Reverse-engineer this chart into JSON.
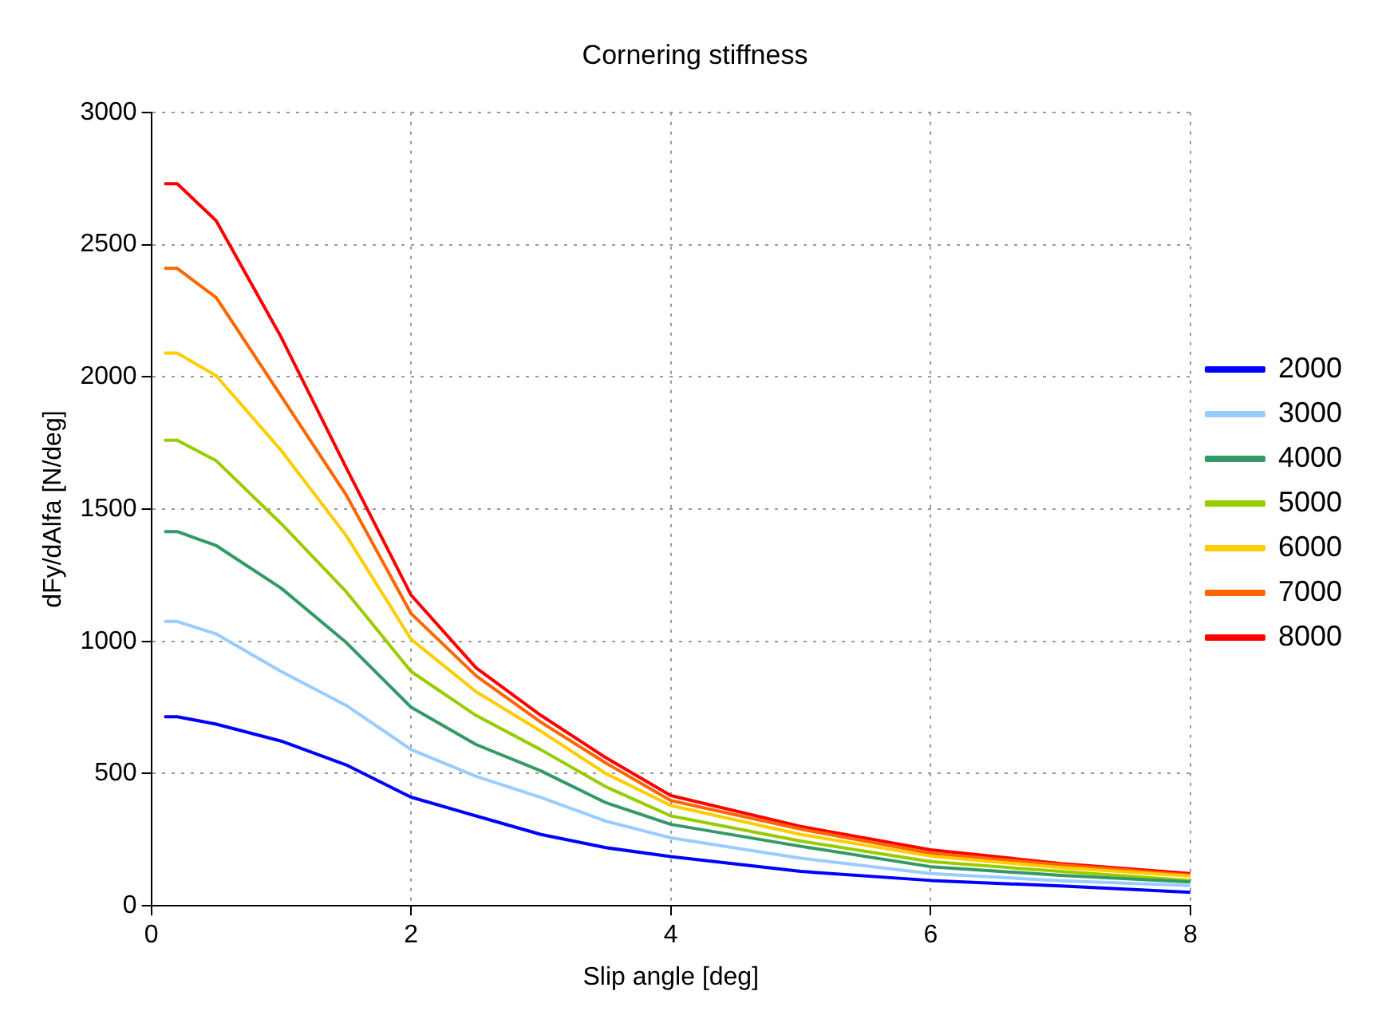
{
  "chart_data": {
    "type": "line",
    "title": "Cornering stiffness",
    "xlabel": "Slip angle [deg]",
    "ylabel": "dFy/dAlfa [N/deg]",
    "x": [
      0.1,
      0.2,
      0.5,
      1,
      1.5,
      2,
      2.5,
      3,
      3.5,
      4,
      5,
      6,
      7,
      8
    ],
    "xlim": [
      0,
      8
    ],
    "xticks": [
      0,
      2,
      4,
      6,
      8
    ],
    "ylim": [
      0,
      3000
    ],
    "yticks": [
      0,
      500,
      1000,
      1500,
      2000,
      2500,
      3000
    ],
    "grid": true,
    "legend": "right",
    "marker": "none",
    "line_style": "solid",
    "series": [
      {
        "name": "2000",
        "color": "#0000ff",
        "values": [
          715,
          715,
          687,
          623,
          533,
          411,
          340,
          270,
          220,
          186,
          130,
          96,
          75,
          51
        ]
      },
      {
        "name": "3000",
        "color": "#99ccff",
        "values": [
          1075,
          1075,
          1028,
          886,
          758,
          591,
          490,
          410,
          320,
          257,
          180,
          122,
          95,
          77
        ]
      },
      {
        "name": "4000",
        "color": "#339966",
        "values": [
          1415,
          1415,
          1362,
          1201,
          996,
          751,
          610,
          510,
          390,
          308,
          225,
          148,
          115,
          90
        ]
      },
      {
        "name": "5000",
        "color": "#99cc00",
        "values": [
          1760,
          1760,
          1683,
          1445,
          1188,
          886,
          720,
          590,
          450,
          340,
          245,
          167,
          130,
          96
        ]
      },
      {
        "name": "6000",
        "color": "#ffcc00",
        "values": [
          2090,
          2090,
          2004,
          1722,
          1400,
          1008,
          810,
          660,
          500,
          379,
          270,
          188,
          145,
          112
        ]
      },
      {
        "name": "7000",
        "color": "#ff6600",
        "values": [
          2410,
          2410,
          2300,
          1927,
          1554,
          1105,
          870,
          694,
          540,
          398,
          290,
          199,
          155,
          116
        ]
      },
      {
        "name": "8000",
        "color": "#ff0000",
        "values": [
          2730,
          2730,
          2590,
          2150,
          1657,
          1175,
          900,
          720,
          560,
          417,
          300,
          212,
          160,
          122
        ]
      }
    ]
  }
}
